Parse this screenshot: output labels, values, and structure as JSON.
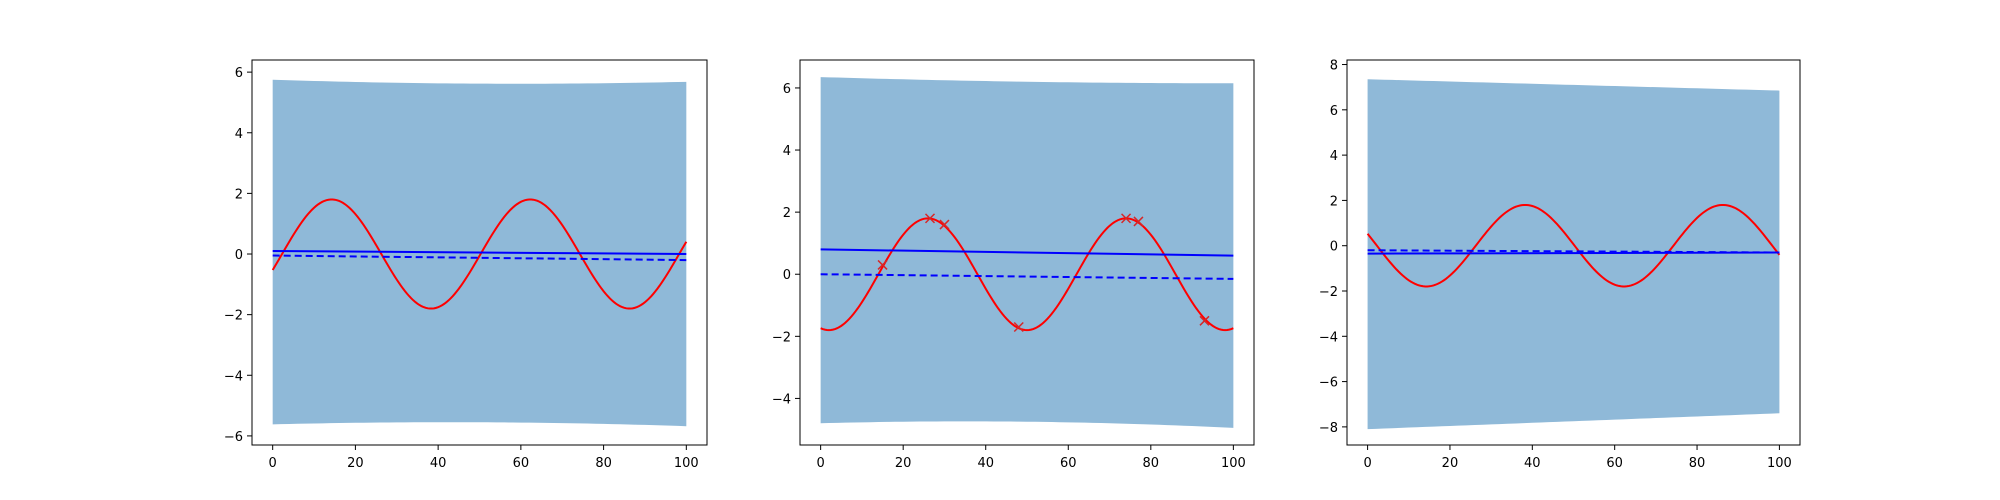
{
  "figure": {
    "layout": "1x3 subplots",
    "colors": {
      "band": "#8fb9d8",
      "mean_line": "#0000ff",
      "truth_line": "#ff0000",
      "observations": "#d62728",
      "axes": "#000000"
    }
  },
  "chart_data": [
    {
      "type": "line",
      "xlim": [
        -5,
        105
      ],
      "ylim": [
        -6.3,
        6.4
      ],
      "xticks": [
        0,
        20,
        40,
        60,
        80,
        100
      ],
      "yticks": [
        -6,
        -4,
        -2,
        0,
        2,
        4,
        6
      ],
      "title": "",
      "xlabel": "",
      "ylabel": "",
      "grid": false,
      "sine": {
        "amplitude": 1.8,
        "period": 48,
        "phase_deg": -17
      },
      "band": {
        "x": [
          0,
          50,
          100
        ],
        "upper": [
          5.75,
          5.62,
          5.68
        ],
        "lower": [
          -5.62,
          -5.55,
          -5.68
        ]
      },
      "mean_solid": {
        "x": [
          0,
          100
        ],
        "y": [
          0.1,
          0.0
        ]
      },
      "mean_dashed": {
        "x": [
          0,
          100
        ],
        "y": [
          -0.05,
          -0.2
        ]
      },
      "observations": []
    },
    {
      "type": "line",
      "xlim": [
        -5,
        105
      ],
      "ylim": [
        -5.5,
        6.9
      ],
      "xticks": [
        0,
        20,
        40,
        60,
        80,
        100
      ],
      "yticks": [
        -4,
        -2,
        0,
        2,
        4,
        6
      ],
      "title": "",
      "xlabel": "",
      "ylabel": "",
      "grid": false,
      "sine": {
        "amplitude": 1.8,
        "period": 48,
        "phase_deg": -105
      },
      "band": {
        "x": [
          0,
          50,
          100
        ],
        "upper": [
          6.35,
          6.2,
          6.15
        ],
        "lower": [
          -4.8,
          -4.75,
          -4.95
        ]
      },
      "mean_solid": {
        "x": [
          0,
          100
        ],
        "y": [
          0.8,
          0.6
        ]
      },
      "mean_dashed": {
        "x": [
          0,
          100
        ],
        "y": [
          0.0,
          -0.15
        ]
      },
      "observations": [
        {
          "x": 15,
          "y": 0.3
        },
        {
          "x": 26.5,
          "y": 1.8
        },
        {
          "x": 30,
          "y": 1.6
        },
        {
          "x": 48,
          "y": -1.7
        },
        {
          "x": 74,
          "y": 1.8
        },
        {
          "x": 77,
          "y": 1.7
        },
        {
          "x": 93,
          "y": -1.5
        }
      ]
    },
    {
      "type": "line",
      "xlim": [
        -5,
        105
      ],
      "ylim": [
        -8.8,
        8.2
      ],
      "xticks": [
        0,
        20,
        40,
        60,
        80,
        100
      ],
      "yticks": [
        -8,
        -6,
        -4,
        -2,
        0,
        2,
        4,
        6,
        8
      ],
      "title": "",
      "xlabel": "",
      "ylabel": "",
      "grid": false,
      "sine": {
        "amplitude": 1.8,
        "period": 48,
        "phase_deg": 163
      },
      "band": {
        "x": [
          0,
          50,
          100
        ],
        "upper": [
          7.35,
          7.1,
          6.85
        ],
        "lower": [
          -8.1,
          -7.75,
          -7.4
        ]
      },
      "mean_solid": {
        "x": [
          0,
          100
        ],
        "y": [
          -0.35,
          -0.3
        ]
      },
      "mean_dashed": {
        "x": [
          0,
          100
        ],
        "y": [
          -0.2,
          -0.3
        ]
      },
      "observations": []
    }
  ]
}
